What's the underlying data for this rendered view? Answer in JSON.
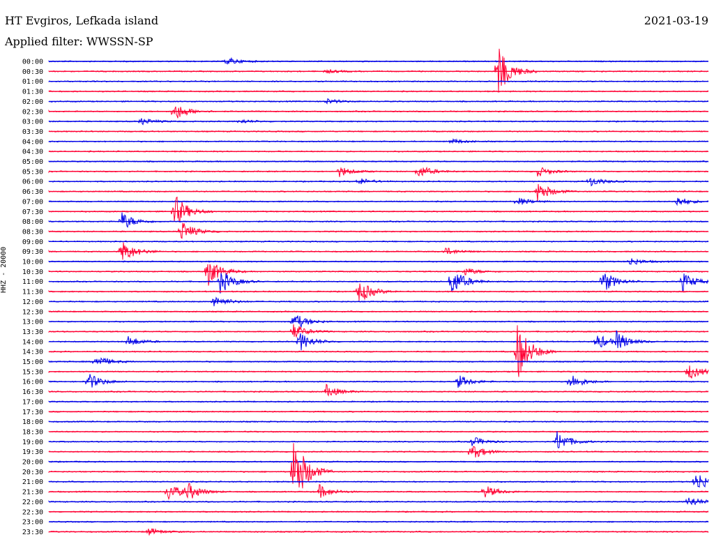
{
  "header": {
    "station": "HT Evgiros, Lefkada island",
    "filter_prefix": "Applied filter: ",
    "filter": "WWSSN-SP",
    "date": "2021-03-19"
  },
  "colors": {
    "trace_a": "#0000e6",
    "trace_b": "#ff0033"
  },
  "chart_data": {
    "type": "line",
    "title": "HT Evgiros, Lefkada island",
    "subtitle": "Applied filter: WWSSN-SP",
    "date": "2021-03-19",
    "ylabel": "HHZ - 20000",
    "row_labels": [
      "00:00",
      "00:30",
      "01:00",
      "01:30",
      "02:00",
      "02:30",
      "03:00",
      "03:30",
      "04:00",
      "04:30",
      "05:00",
      "05:30",
      "06:00",
      "06:30",
      "07:00",
      "07:30",
      "08:00",
      "08:30",
      "09:00",
      "09:30",
      "10:00",
      "10:30",
      "11:00",
      "11:30",
      "12:00",
      "12:30",
      "13:00",
      "13:30",
      "14:00",
      "14:30",
      "15:00",
      "15:30",
      "16:00",
      "16:30",
      "17:00",
      "17:30",
      "18:00",
      "18:30",
      "19:00",
      "19:30",
      "20:00",
      "20:30",
      "21:00",
      "21:30",
      "22:00",
      "22:30",
      "23:00",
      "23:30"
    ],
    "row_minutes": 30,
    "series_colors": [
      "#0000e6",
      "#ff0033"
    ],
    "events": [
      {
        "row": 0,
        "pos": 0.27,
        "amp": 6
      },
      {
        "row": 1,
        "pos": 0.68,
        "amp": 38
      },
      {
        "row": 1,
        "pos": 0.42,
        "amp": 3
      },
      {
        "row": 4,
        "pos": 0.42,
        "amp": 4
      },
      {
        "row": 5,
        "pos": 0.19,
        "amp": 14
      },
      {
        "row": 6,
        "pos": 0.14,
        "amp": 5
      },
      {
        "row": 6,
        "pos": 0.29,
        "amp": 3
      },
      {
        "row": 8,
        "pos": 0.61,
        "amp": 4
      },
      {
        "row": 11,
        "pos": 0.44,
        "amp": 8
      },
      {
        "row": 11,
        "pos": 0.56,
        "amp": 10
      },
      {
        "row": 11,
        "pos": 0.74,
        "amp": 8
      },
      {
        "row": 12,
        "pos": 0.47,
        "amp": 5
      },
      {
        "row": 12,
        "pos": 0.82,
        "amp": 7
      },
      {
        "row": 13,
        "pos": 0.74,
        "amp": 16
      },
      {
        "row": 14,
        "pos": 0.71,
        "amp": 6
      },
      {
        "row": 14,
        "pos": 0.95,
        "amp": 8
      },
      {
        "row": 15,
        "pos": 0.19,
        "amp": 26
      },
      {
        "row": 16,
        "pos": 0.11,
        "amp": 14
      },
      {
        "row": 17,
        "pos": 0.2,
        "amp": 16
      },
      {
        "row": 19,
        "pos": 0.11,
        "amp": 18
      },
      {
        "row": 19,
        "pos": 0.6,
        "amp": 6
      },
      {
        "row": 20,
        "pos": 0.88,
        "amp": 6
      },
      {
        "row": 21,
        "pos": 0.24,
        "amp": 22
      },
      {
        "row": 21,
        "pos": 0.63,
        "amp": 6
      },
      {
        "row": 22,
        "pos": 0.26,
        "amp": 18
      },
      {
        "row": 22,
        "pos": 0.61,
        "amp": 22
      },
      {
        "row": 22,
        "pos": 0.84,
        "amp": 16
      },
      {
        "row": 22,
        "pos": 0.96,
        "amp": 14
      },
      {
        "row": 23,
        "pos": 0.47,
        "amp": 18
      },
      {
        "row": 24,
        "pos": 0.25,
        "amp": 10
      },
      {
        "row": 26,
        "pos": 0.37,
        "amp": 14
      },
      {
        "row": 27,
        "pos": 0.37,
        "amp": 12
      },
      {
        "row": 28,
        "pos": 0.12,
        "amp": 8
      },
      {
        "row": 28,
        "pos": 0.38,
        "amp": 14
      },
      {
        "row": 28,
        "pos": 0.83,
        "amp": 12
      },
      {
        "row": 28,
        "pos": 0.86,
        "amp": 14
      },
      {
        "row": 29,
        "pos": 0.71,
        "amp": 44
      },
      {
        "row": 30,
        "pos": 0.07,
        "amp": 10
      },
      {
        "row": 31,
        "pos": 0.97,
        "amp": 12
      },
      {
        "row": 32,
        "pos": 0.06,
        "amp": 12
      },
      {
        "row": 32,
        "pos": 0.62,
        "amp": 10
      },
      {
        "row": 32,
        "pos": 0.79,
        "amp": 12
      },
      {
        "row": 33,
        "pos": 0.42,
        "amp": 10
      },
      {
        "row": 38,
        "pos": 0.64,
        "amp": 8
      },
      {
        "row": 38,
        "pos": 0.77,
        "amp": 16
      },
      {
        "row": 39,
        "pos": 0.64,
        "amp": 12
      },
      {
        "row": 41,
        "pos": 0.37,
        "amp": 60
      },
      {
        "row": 42,
        "pos": 0.98,
        "amp": 16
      },
      {
        "row": 43,
        "pos": 0.18,
        "amp": 14
      },
      {
        "row": 43,
        "pos": 0.21,
        "amp": 12
      },
      {
        "row": 43,
        "pos": 0.41,
        "amp": 10
      },
      {
        "row": 43,
        "pos": 0.66,
        "amp": 10
      },
      {
        "row": 44,
        "pos": 0.97,
        "amp": 8
      },
      {
        "row": 47,
        "pos": 0.15,
        "amp": 6
      }
    ]
  }
}
